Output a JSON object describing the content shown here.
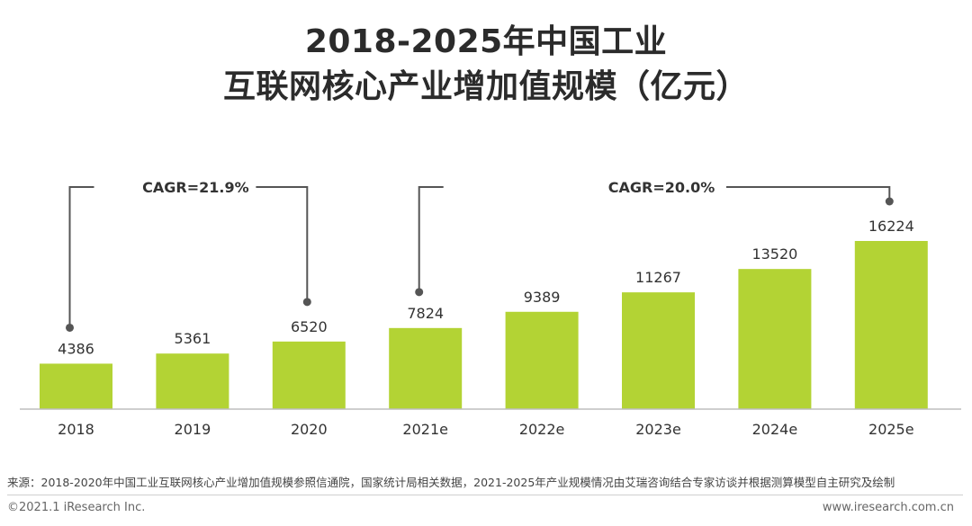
{
  "title": {
    "line1": "2018-2025年中国工业",
    "line2": "互联网核心产业增加值规模（亿元）"
  },
  "chart_data": {
    "type": "bar",
    "title": "2018-2025年中国工业互联网核心产业增加值规模（亿元）",
    "categories": [
      "2018",
      "2019",
      "2020",
      "2021e",
      "2022e",
      "2023e",
      "2024e",
      "2025e"
    ],
    "values": [
      4386,
      5361,
      6520,
      7824,
      9389,
      11267,
      13520,
      16224
    ],
    "xlabel": "",
    "ylabel": "",
    "ylim": [
      0,
      17000
    ],
    "bar_color": "#b3d334",
    "grid": false,
    "annotations": [
      {
        "label": "CAGR=21.9%",
        "from": "2018",
        "to": "2020"
      },
      {
        "label": "CAGR=20.0%",
        "from": "2021e",
        "to": "2025e"
      }
    ]
  },
  "source": "来源：2018-2020年中国工业互联网核心产业增加值规模参照信通院，国家统计局相关数据，2021-2025年产业规模情况由艾瑞咨询结合专家访谈并根据测算模型自主研究及绘制",
  "footer": {
    "copyright": "©2021.1 iResearch Inc.",
    "website": "www.iresearch.com.cn"
  }
}
